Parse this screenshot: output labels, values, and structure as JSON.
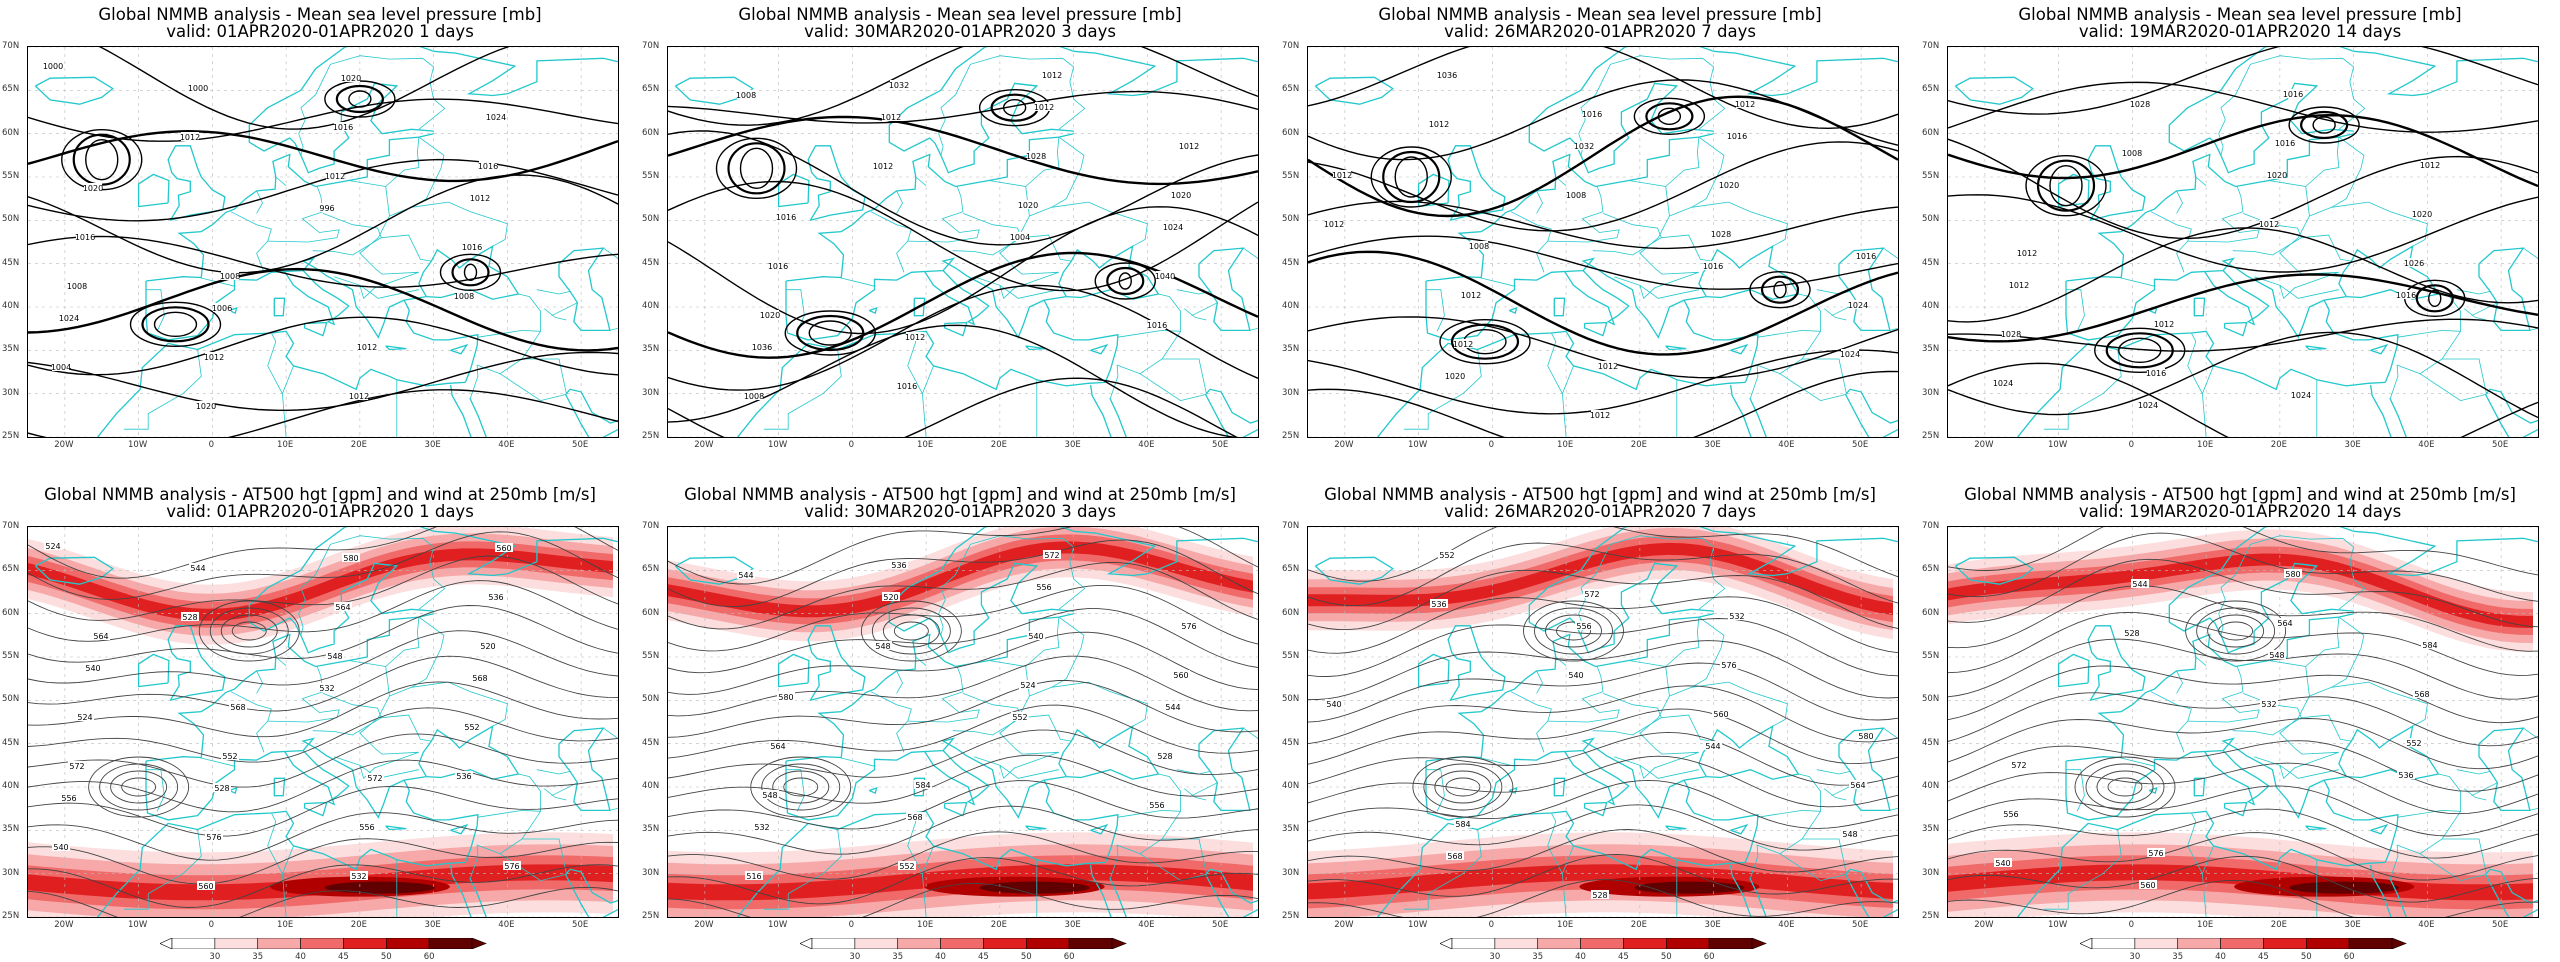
{
  "panels": [
    {
      "id": "mslp-1d",
      "t1": "Global NMMB analysis - Mean sea level pressure [mb]",
      "t2": "valid: 01APR2020-01APR2020  1 days",
      "kind": "mslp",
      "contour_labels": [
        "1000",
        "1012",
        "996",
        "1008",
        "1004",
        "1000",
        "1012",
        "1016",
        "1024",
        "1020",
        "1016",
        "1012",
        "1008",
        "1012",
        "1020",
        "1016",
        "1016",
        "1006",
        "1012",
        "1024",
        "1020",
        "1008",
        "1012"
      ]
    },
    {
      "id": "mslp-3d",
      "t1": "Global NMMB analysis - Mean sea level pressure [mb]",
      "t2": "valid: 30MAR2020-01APR2020  3 days",
      "kind": "mslp",
      "contour_labels": [
        "1008",
        "1012",
        "1004",
        "1016",
        "1008",
        "1012",
        "1020",
        "1040",
        "1036",
        "1032",
        "1028",
        "1024",
        "1020",
        "1016",
        "1012",
        "1020",
        "1016",
        "1012",
        "1012",
        "1012",
        "1016"
      ]
    },
    {
      "id": "mslp-7d",
      "t1": "Global NMMB analysis - Mean sea level pressure [mb]",
      "t2": "valid: 26MAR2020-01APR2020  7 days",
      "kind": "mslp",
      "contour_labels": [
        "1012",
        "1008",
        "1016",
        "1024",
        "1036",
        "1032",
        "1028",
        "1024",
        "1020",
        "1016",
        "1020",
        "1016",
        "1012",
        "1012",
        "1016",
        "1012",
        "1012",
        "1012",
        "1012",
        "1012",
        "1008"
      ]
    },
    {
      "id": "mslp-14d",
      "t1": "Global NMMB analysis - Mean sea level pressure [mb]",
      "t2": "valid: 19MAR2020-01APR2020  14 days",
      "kind": "mslp",
      "contour_labels": [
        "1008",
        "1012",
        "1016",
        "1024",
        "1028",
        "1020",
        "1026",
        "1028",
        "1024",
        "1016",
        "1020",
        "1012",
        "1016",
        "1016",
        "1012",
        "1012",
        "1012",
        "1024"
      ]
    },
    {
      "id": "z500-1d",
      "t1": "Global NMMB analysis - AT500 hgt [gpm] and wind at 250mb [m/s]",
      "t2": "valid: 01APR2020-01APR2020  1 days",
      "kind": "z500",
      "contour_labels": [
        "524",
        "528",
        "532",
        "536",
        "540",
        "544",
        "548",
        "552",
        "556",
        "560",
        "564",
        "568",
        "572",
        "576",
        "580",
        "520",
        "524",
        "528",
        "532",
        "536",
        "540",
        "552",
        "556",
        "560",
        "564",
        "568",
        "572",
        "576"
      ]
    },
    {
      "id": "z500-3d",
      "t1": "Global NMMB analysis - AT500 hgt [gpm] and wind at 250mb [m/s]",
      "t2": "valid: 30MAR2020-01APR2020  3 days",
      "kind": "z500",
      "contour_labels": [
        "544",
        "548",
        "552",
        "556",
        "516",
        "520",
        "524",
        "528",
        "532",
        "536",
        "540",
        "544",
        "548",
        "552",
        "556",
        "560",
        "564",
        "568",
        "572",
        "576",
        "580",
        "584"
      ]
    },
    {
      "id": "z500-7d",
      "t1": "Global NMMB analysis - AT500 hgt [gpm] and wind at 250mb [m/s]",
      "t2": "valid: 26MAR2020-01APR2020  7 days",
      "kind": "z500",
      "contour_labels": [
        "536",
        "540",
        "544",
        "548",
        "552",
        "556",
        "560",
        "564",
        "568",
        "572",
        "576",
        "580",
        "584",
        "528",
        "532",
        "540"
      ]
    },
    {
      "id": "z500-14d",
      "t1": "Global NMMB analysis - AT500 hgt [gpm] and wind at 250mb [m/s]",
      "t2": "valid: 19MAR2020-01APR2020  14 days",
      "kind": "z500",
      "contour_labels": [
        "528",
        "532",
        "536",
        "540",
        "544",
        "548",
        "552",
        "556",
        "560",
        "564",
        "568",
        "572",
        "576",
        "580",
        "584"
      ]
    }
  ],
  "lat_labels": [
    "70N",
    "65N",
    "60N",
    "55N",
    "50N",
    "45N",
    "40N",
    "35N",
    "30N",
    "25N"
  ],
  "lon_labels": [
    "20W",
    "10W",
    "0",
    "10E",
    "20E",
    "30E",
    "40E",
    "50E"
  ],
  "colorbar": {
    "ticks": [
      "30",
      "35",
      "40",
      "45",
      "50",
      "60"
    ],
    "colors": [
      "#ffffff",
      "#fcdede",
      "#f7a8a8",
      "#f06a6a",
      "#e02020",
      "#b00000",
      "#600000"
    ]
  },
  "colors": {
    "coast": "#22c8cc",
    "contour": "#000000",
    "grid": "#bbbbbb"
  }
}
